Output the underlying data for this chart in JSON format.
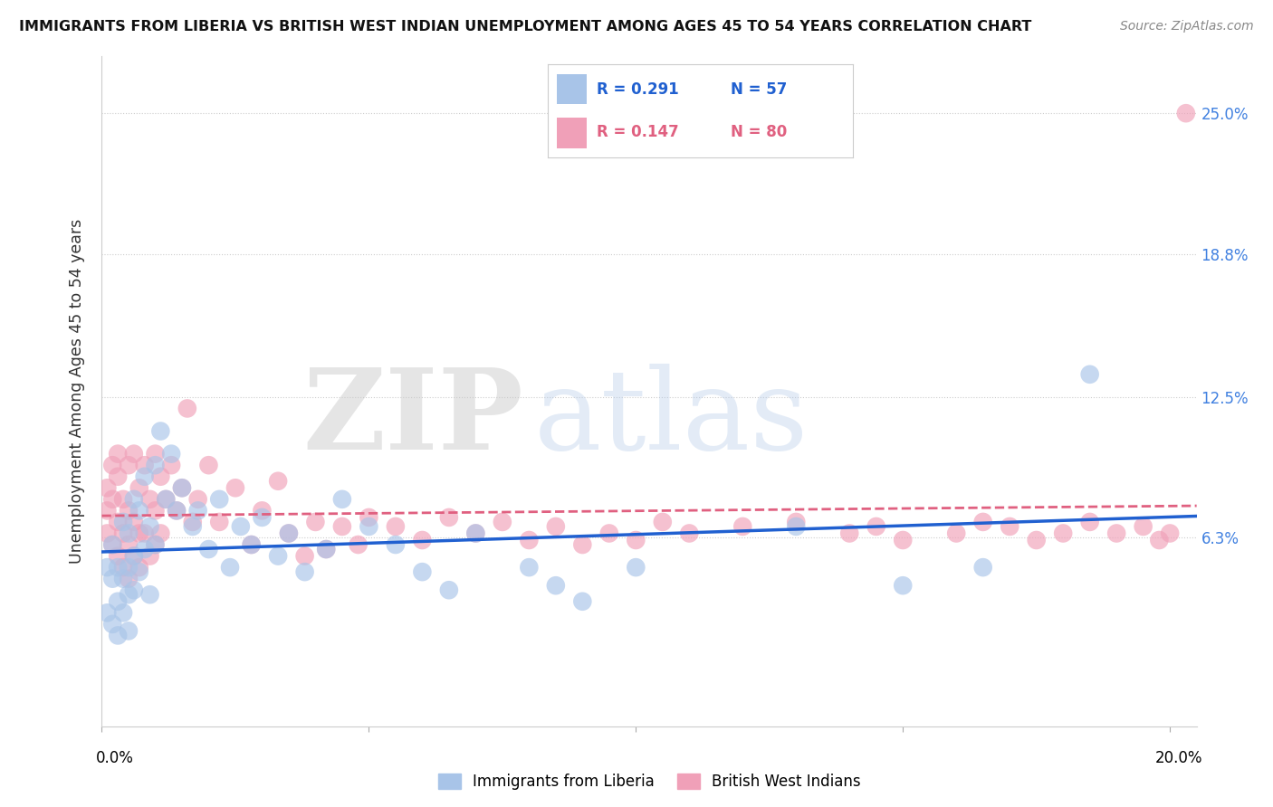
{
  "title": "IMMIGRANTS FROM LIBERIA VS BRITISH WEST INDIAN UNEMPLOYMENT AMONG AGES 45 TO 54 YEARS CORRELATION CHART",
  "source": "Source: ZipAtlas.com",
  "ylabel": "Unemployment Among Ages 45 to 54 years",
  "ytick_labels": [
    "25.0%",
    "18.8%",
    "12.5%",
    "6.3%"
  ],
  "ytick_vals": [
    0.25,
    0.188,
    0.125,
    0.063
  ],
  "xlim": [
    0.0,
    0.205
  ],
  "ylim": [
    -0.02,
    0.275
  ],
  "plot_ylim": [
    -0.02,
    0.275
  ],
  "liberia_color": "#a8c4e8",
  "bwi_color": "#f0a0b8",
  "liberia_line_color": "#2060d0",
  "bwi_line_color": "#e06080",
  "liberia_legend": "R = 0.291   N = 57",
  "bwi_legend": "R = 0.147   N = 80",
  "liberia_r": "R = 0.291",
  "liberia_n": "N = 57",
  "bwi_r": "R = 0.147",
  "bwi_n": "N = 80",
  "watermark_zip": "ZIP",
  "watermark_atlas": "atlas",
  "liberia_x": [
    0.001,
    0.001,
    0.002,
    0.002,
    0.002,
    0.003,
    0.003,
    0.003,
    0.004,
    0.004,
    0.004,
    0.005,
    0.005,
    0.005,
    0.005,
    0.006,
    0.006,
    0.006,
    0.007,
    0.007,
    0.008,
    0.008,
    0.009,
    0.009,
    0.01,
    0.01,
    0.011,
    0.012,
    0.013,
    0.014,
    0.015,
    0.017,
    0.018,
    0.02,
    0.022,
    0.024,
    0.026,
    0.028,
    0.03,
    0.033,
    0.035,
    0.038,
    0.042,
    0.045,
    0.05,
    0.055,
    0.06,
    0.065,
    0.07,
    0.08,
    0.085,
    0.09,
    0.1,
    0.13,
    0.15,
    0.165,
    0.185
  ],
  "liberia_y": [
    0.05,
    0.03,
    0.045,
    0.025,
    0.06,
    0.05,
    0.035,
    0.02,
    0.07,
    0.045,
    0.03,
    0.065,
    0.05,
    0.038,
    0.022,
    0.08,
    0.055,
    0.04,
    0.075,
    0.048,
    0.09,
    0.058,
    0.068,
    0.038,
    0.095,
    0.06,
    0.11,
    0.08,
    0.1,
    0.075,
    0.085,
    0.068,
    0.075,
    0.058,
    0.08,
    0.05,
    0.068,
    0.06,
    0.072,
    0.055,
    0.065,
    0.048,
    0.058,
    0.08,
    0.068,
    0.06,
    0.048,
    0.04,
    0.065,
    0.05,
    0.042,
    0.035,
    0.05,
    0.068,
    0.042,
    0.05,
    0.135
  ],
  "bwi_x": [
    0.001,
    0.001,
    0.001,
    0.002,
    0.002,
    0.002,
    0.003,
    0.003,
    0.003,
    0.003,
    0.004,
    0.004,
    0.004,
    0.005,
    0.005,
    0.005,
    0.005,
    0.006,
    0.006,
    0.006,
    0.007,
    0.007,
    0.007,
    0.008,
    0.008,
    0.009,
    0.009,
    0.01,
    0.01,
    0.01,
    0.011,
    0.011,
    0.012,
    0.013,
    0.014,
    0.015,
    0.016,
    0.017,
    0.018,
    0.02,
    0.022,
    0.025,
    0.028,
    0.03,
    0.033,
    0.035,
    0.038,
    0.04,
    0.042,
    0.045,
    0.048,
    0.05,
    0.055,
    0.06,
    0.065,
    0.07,
    0.075,
    0.08,
    0.085,
    0.09,
    0.095,
    0.1,
    0.105,
    0.11,
    0.12,
    0.13,
    0.14,
    0.145,
    0.15,
    0.16,
    0.165,
    0.17,
    0.175,
    0.18,
    0.185,
    0.19,
    0.195,
    0.198,
    0.2,
    0.203
  ],
  "bwi_y": [
    0.065,
    0.075,
    0.085,
    0.06,
    0.08,
    0.095,
    0.055,
    0.07,
    0.09,
    0.1,
    0.065,
    0.08,
    0.05,
    0.075,
    0.095,
    0.06,
    0.045,
    0.1,
    0.07,
    0.055,
    0.085,
    0.065,
    0.05,
    0.095,
    0.065,
    0.08,
    0.055,
    0.1,
    0.075,
    0.06,
    0.09,
    0.065,
    0.08,
    0.095,
    0.075,
    0.085,
    0.12,
    0.07,
    0.08,
    0.095,
    0.07,
    0.085,
    0.06,
    0.075,
    0.088,
    0.065,
    0.055,
    0.07,
    0.058,
    0.068,
    0.06,
    0.072,
    0.068,
    0.062,
    0.072,
    0.065,
    0.07,
    0.062,
    0.068,
    0.06,
    0.065,
    0.062,
    0.07,
    0.065,
    0.068,
    0.07,
    0.065,
    0.068,
    0.062,
    0.065,
    0.07,
    0.068,
    0.062,
    0.065,
    0.07,
    0.065,
    0.068,
    0.062,
    0.065,
    0.25
  ]
}
